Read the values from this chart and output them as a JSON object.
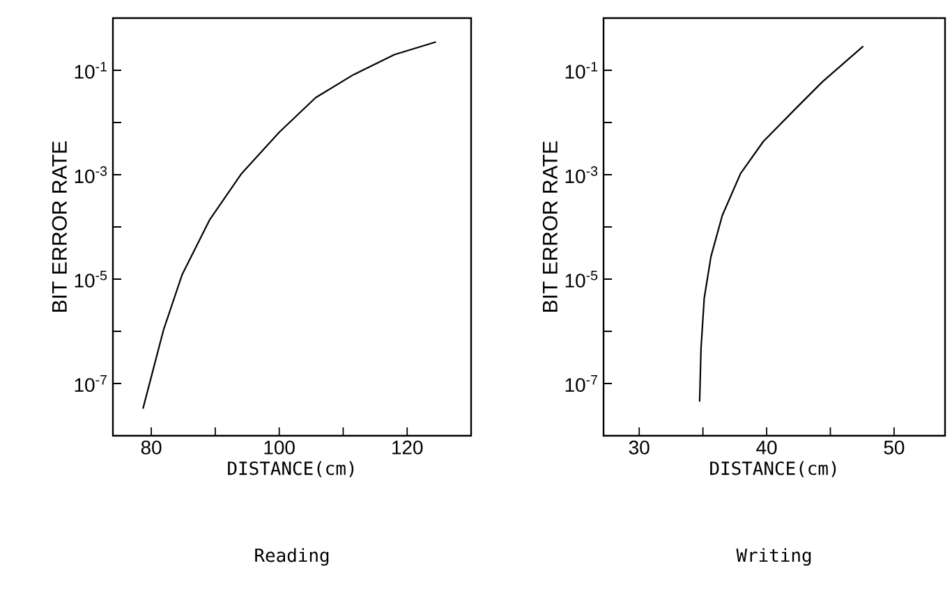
{
  "chart_data": [
    {
      "type": "line",
      "title": "Reading",
      "xlabel": "DISTANCE(cm)",
      "ylabel": "BIT ERROR RATE",
      "log": "y",
      "marker": "none",
      "xlim": [
        74,
        130
      ],
      "xticks": [
        80,
        {
          "value": 90,
          "label": null
        },
        100,
        {
          "value": 110,
          "label": null
        },
        120
      ],
      "ylim": [
        1e-08,
        1
      ],
      "yticks": [
        {
          "value": 1e-07,
          "label": "10$^{-7}$"
        },
        {
          "value": 1e-06,
          "label": null
        },
        {
          "value": 1e-05,
          "label": "10$^{-5}$"
        },
        {
          "value": 0.0001,
          "label": null
        },
        {
          "value": 0.001,
          "label": "10$^{-3}$"
        },
        {
          "value": 0.01,
          "label": null
        },
        {
          "value": 0.1,
          "label": "10$^{-1}$"
        }
      ],
      "series": [
        {
          "color": "#000000",
          "x": [
            78.7,
            81.9,
            84.8,
            89.1,
            94.1,
            100,
            105.7,
            111.5,
            118,
            124.5
          ],
          "values": [
            3.3e-08,
            1.05e-06,
            1.2e-05,
            0.000135,
            0.00105,
            0.0065,
            0.03,
            0.081,
            0.2,
            0.35
          ]
        }
      ]
    },
    {
      "type": "line",
      "title": "Writing",
      "xlabel": "DISTANCE(cm)",
      "ylabel": "BIT ERROR RATE",
      "log": "y",
      "marker": "none",
      "xlim": [
        27.2,
        54
      ],
      "xticks": [
        30,
        {
          "value": 35,
          "label": null
        },
        40,
        {
          "value": 45,
          "label": null
        },
        50
      ],
      "ylim": [
        1e-08,
        1
      ],
      "yticks": [
        {
          "value": 1e-07,
          "label": "10$^{-7}$"
        },
        {
          "value": 1e-06,
          "label": null
        },
        {
          "value": 1e-05,
          "label": "10$^{-5}$"
        },
        {
          "value": 0.0001,
          "label": null
        },
        {
          "value": 0.001,
          "label": "10$^{-3}$"
        },
        {
          "value": 0.01,
          "label": null
        },
        {
          "value": 0.1,
          "label": "10$^{-1}$"
        }
      ],
      "series": [
        {
          "color": "#000000",
          "x": [
            34.74,
            34.85,
            35.1,
            35.63,
            36.52,
            37.95,
            39.73,
            42.23,
            44.37,
            47.58
          ],
          "values": [
            4.5e-08,
            4.7e-07,
            4.3e-06,
            2.7e-05,
            0.000166,
            0.00105,
            0.0043,
            0.018,
            0.06,
            0.29
          ]
        }
      ]
    }
  ]
}
